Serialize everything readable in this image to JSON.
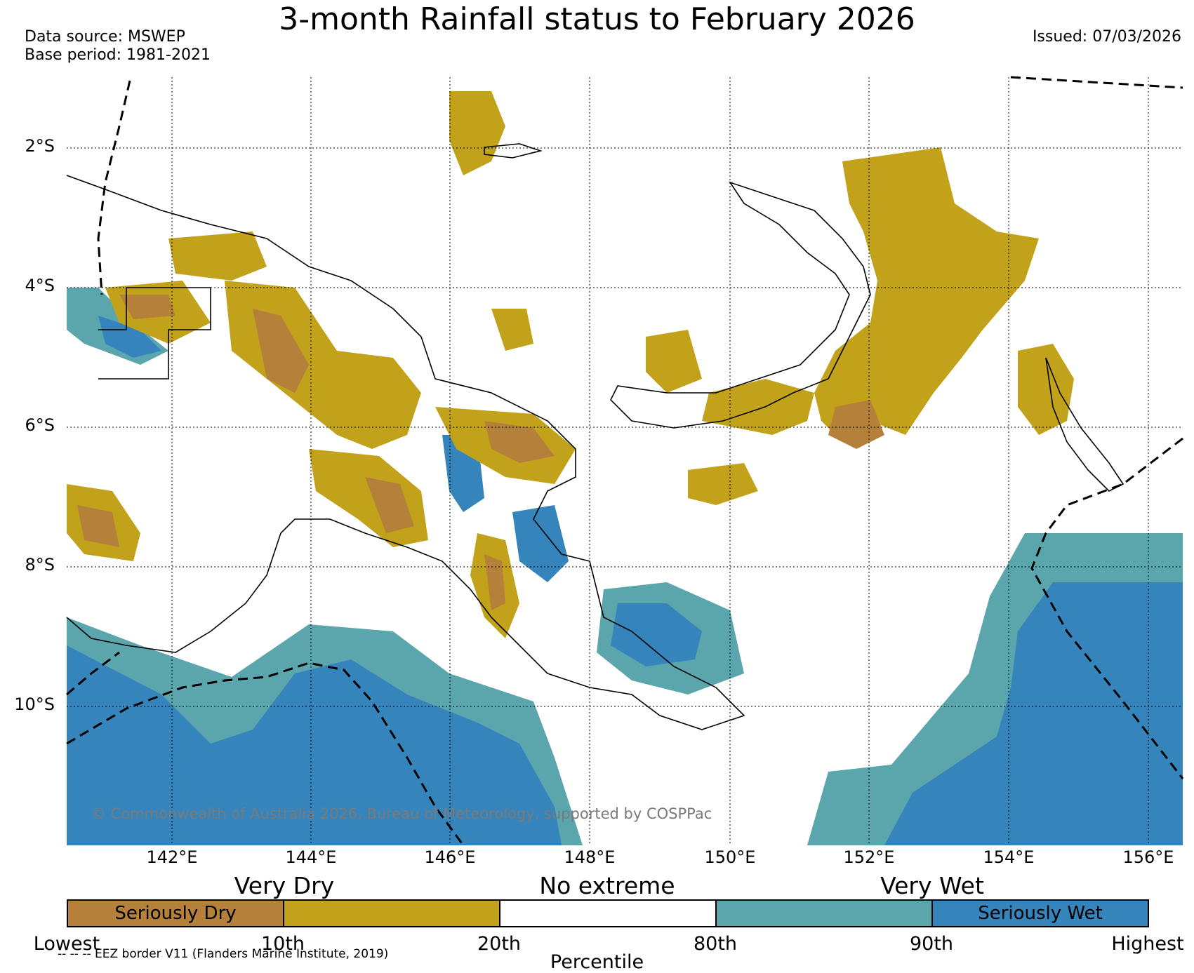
{
  "header": {
    "title": "3-month Rainfall status to February 2026",
    "data_source": "Data source: MSWEP",
    "base_period": "Base period: 1981-2021",
    "issued": "Issued: 07/03/2026"
  },
  "map": {
    "lat_labels": [
      "2°S",
      "4°S",
      "6°S",
      "8°S",
      "10°S"
    ],
    "lon_labels": [
      "142°E",
      "144°E",
      "146°E",
      "148°E",
      "150°E",
      "152°E",
      "154°E",
      "156°E"
    ],
    "copyright": "© Commonwealth of Australia 2026, Bureau of Meteorology, supported by COSPPac"
  },
  "legend": {
    "categories": {
      "dry": "Very Dry",
      "none": "No extreme",
      "wet": "Very Wet"
    },
    "segments": [
      {
        "label": "Seriously Dry",
        "color": "#b5803a"
      },
      {
        "label": "",
        "color": "#c3a21b"
      },
      {
        "label": "",
        "color": "#ffffff"
      },
      {
        "label": "",
        "color": "#5ba6ad"
      },
      {
        "label": "Seriously Wet",
        "color": "#3584bb"
      }
    ],
    "ticks": [
      "Lowest",
      "10th",
      "20th",
      "80th",
      "90th",
      "Highest"
    ],
    "axis_label": "Percentile",
    "eez_note": "-- -- -- EEZ border V11 (Flanders Marine Institute, 2019)"
  },
  "colors": {
    "seriously_dry": "#b5803a",
    "very_dry": "#c3a21b",
    "very_wet": "#5ba6ad",
    "seriously_wet": "#3584bb"
  }
}
